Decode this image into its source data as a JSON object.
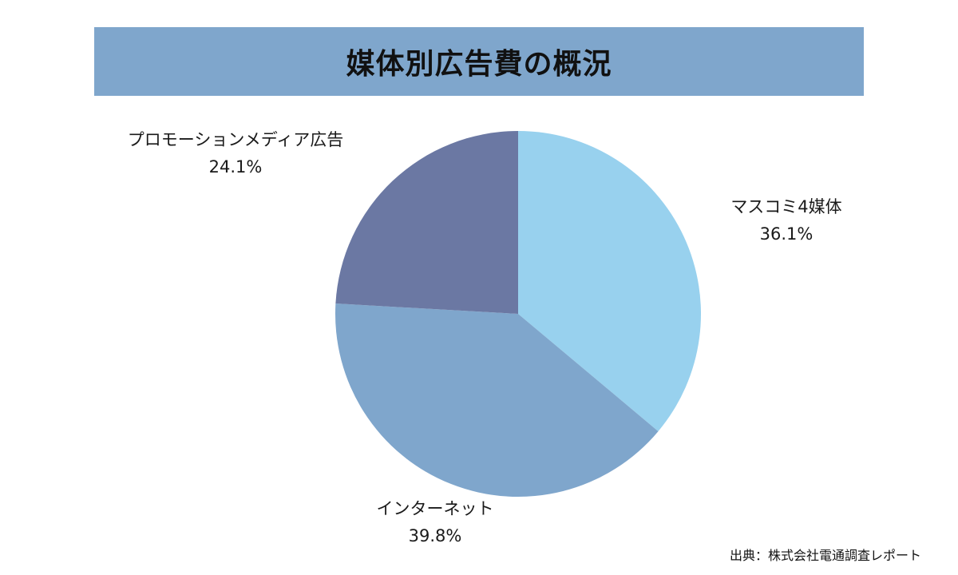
{
  "chart_data": {
    "type": "pie",
    "title": "媒体別広告費の概況",
    "categories": [
      "マスコミ4媒体",
      "インターネット",
      "プロモーションメディア広告"
    ],
    "values": [
      36.1,
      39.8,
      24.1
    ],
    "value_labels": [
      "36.1%",
      "39.8%",
      "24.1%"
    ],
    "colors": [
      "#98d1ee",
      "#7fa6cc",
      "#6b78a3"
    ],
    "start": "12 o'clock",
    "direction": "clockwise",
    "legend": "none"
  },
  "source": "出典：株式会社電通調査レポート"
}
